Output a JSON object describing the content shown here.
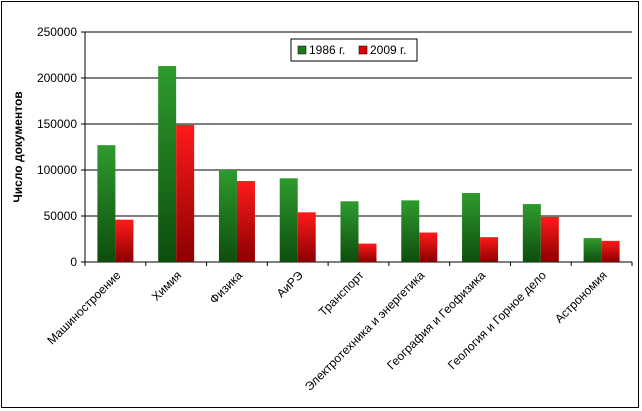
{
  "chart_data": {
    "type": "bar",
    "title": "",
    "xlabel": "",
    "ylabel": "Число документов",
    "ylim": [
      0,
      250000
    ],
    "yticks": [
      0,
      50000,
      100000,
      150000,
      200000,
      250000
    ],
    "ytick_labels": [
      "0",
      "50000",
      "100000",
      "150000",
      "200000",
      "250000"
    ],
    "grid": true,
    "legend_position": "top-right",
    "categories": [
      "Машиностроение",
      "Химия",
      "Физика",
      "АиРЭ",
      "Транспорт",
      "Электротехника и энергетика",
      "География и Геофизика",
      "Геология и Горное дело",
      "Астрономия"
    ],
    "series": [
      {
        "name": "1986 г.",
        "color": "#1f7a1f",
        "values": [
          127000,
          213000,
          100000,
          91000,
          66000,
          67000,
          75000,
          63000,
          26000
        ]
      },
      {
        "name": "2009 г.",
        "color": "#e00000",
        "values": [
          46000,
          149000,
          88000,
          54000,
          20000,
          32000,
          27000,
          49000,
          23000
        ]
      }
    ]
  }
}
